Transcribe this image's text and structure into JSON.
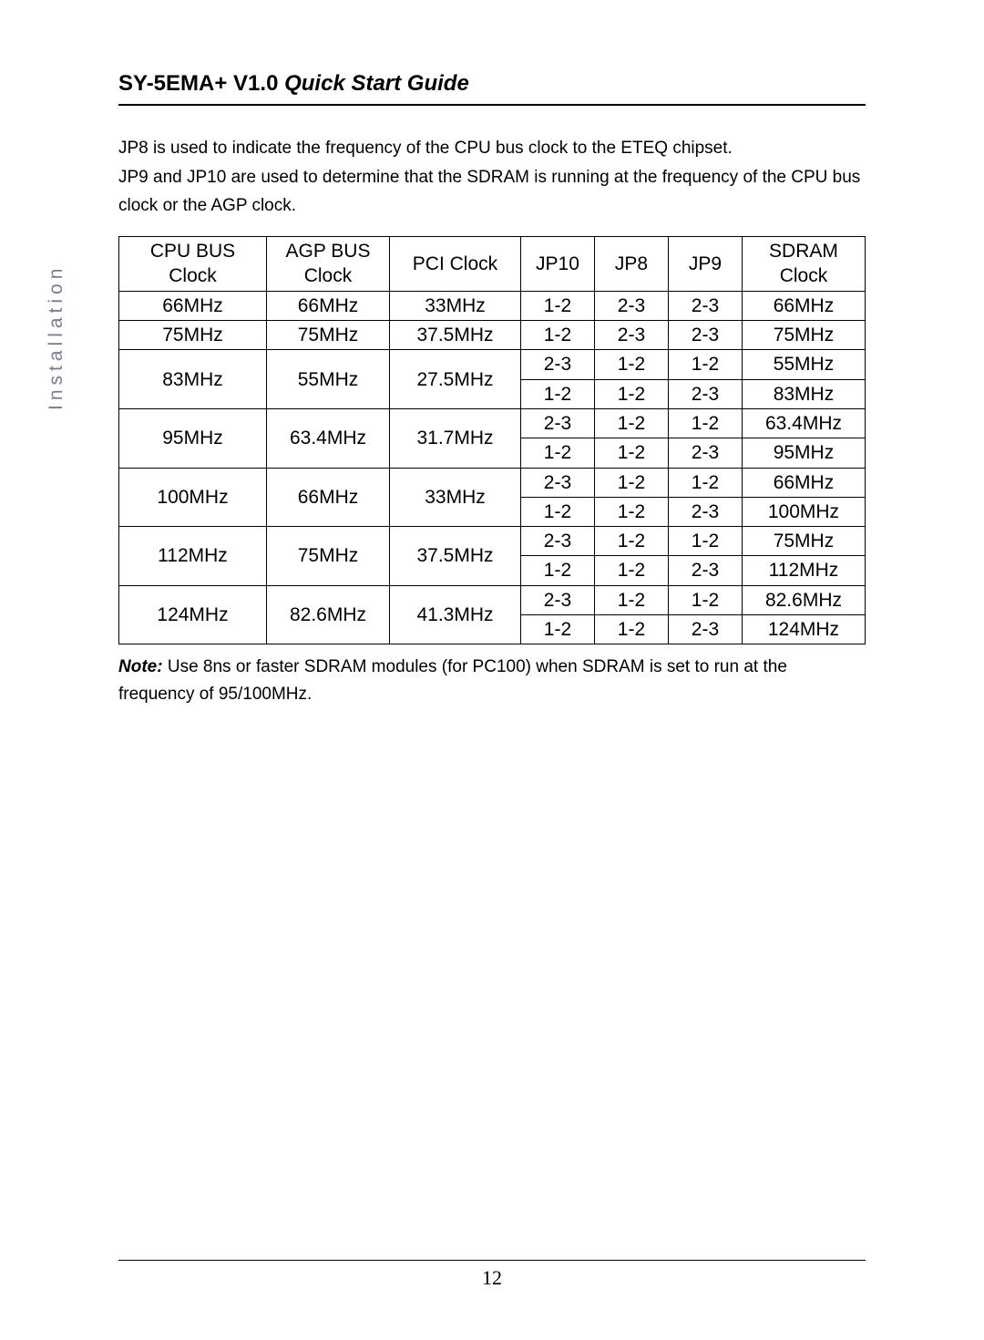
{
  "header": {
    "model": "SY-5EMA+ V1.0",
    "subtitle": "Quick Start Guide"
  },
  "sideLabel": "Installation",
  "intro": {
    "line1": "JP8 is used to indicate the frequency of the CPU bus clock to the ETEQ chipset.",
    "line2": "JP9 and JP10 are used to determine that the SDRAM is running at the frequency of the CPU bus clock or the AGP clock."
  },
  "table": {
    "headers": {
      "cpu": "CPU BUS Clock",
      "agp": "AGP BUS Clock",
      "pci": "PCI Clock",
      "jp10": "JP10",
      "jp8": "JP8",
      "jp9": "JP9",
      "sdram": "SDRAM Clock"
    },
    "groups": [
      {
        "cpu": "66MHz",
        "agp": "66MHz",
        "pci": "33MHz",
        "rows": [
          {
            "jp10": "1-2",
            "jp8": "2-3",
            "jp9": "2-3",
            "sdram": "66MHz"
          }
        ]
      },
      {
        "cpu": "75MHz",
        "agp": "75MHz",
        "pci": "37.5MHz",
        "rows": [
          {
            "jp10": "1-2",
            "jp8": "2-3",
            "jp9": "2-3",
            "sdram": "75MHz"
          }
        ]
      },
      {
        "cpu": "83MHz",
        "agp": "55MHz",
        "pci": "27.5MHz",
        "rows": [
          {
            "jp10": "2-3",
            "jp8": "1-2",
            "jp9": "1-2",
            "sdram": "55MHz"
          },
          {
            "jp10": "1-2",
            "jp8": "1-2",
            "jp9": "2-3",
            "sdram": "83MHz"
          }
        ]
      },
      {
        "cpu": "95MHz",
        "agp": "63.4MHz",
        "pci": "31.7MHz",
        "rows": [
          {
            "jp10": "2-3",
            "jp8": "1-2",
            "jp9": "1-2",
            "sdram": "63.4MHz"
          },
          {
            "jp10": "1-2",
            "jp8": "1-2",
            "jp9": "2-3",
            "sdram": "95MHz"
          }
        ]
      },
      {
        "cpu": "100MHz",
        "agp": "66MHz",
        "pci": "33MHz",
        "rows": [
          {
            "jp10": "2-3",
            "jp8": "1-2",
            "jp9": "1-2",
            "sdram": "66MHz"
          },
          {
            "jp10": "1-2",
            "jp8": "1-2",
            "jp9": "2-3",
            "sdram": "100MHz"
          }
        ]
      },
      {
        "cpu": "112MHz",
        "agp": "75MHz",
        "pci": "37.5MHz",
        "rows": [
          {
            "jp10": "2-3",
            "jp8": "1-2",
            "jp9": "1-2",
            "sdram": "75MHz"
          },
          {
            "jp10": "1-2",
            "jp8": "1-2",
            "jp9": "2-3",
            "sdram": "112MHz"
          }
        ]
      },
      {
        "cpu": "124MHz",
        "agp": "82.6MHz",
        "pci": "41.3MHz",
        "rows": [
          {
            "jp10": "2-3",
            "jp8": "1-2",
            "jp9": "1-2",
            "sdram": "82.6MHz"
          },
          {
            "jp10": "1-2",
            "jp8": "1-2",
            "jp9": "2-3",
            "sdram": "124MHz"
          }
        ]
      }
    ]
  },
  "note": {
    "label": "Note:",
    "text": " Use 8ns or faster SDRAM modules (for PC100) when SDRAM is set to run at the frequency of 95/100MHz."
  },
  "pageNumber": "12"
}
